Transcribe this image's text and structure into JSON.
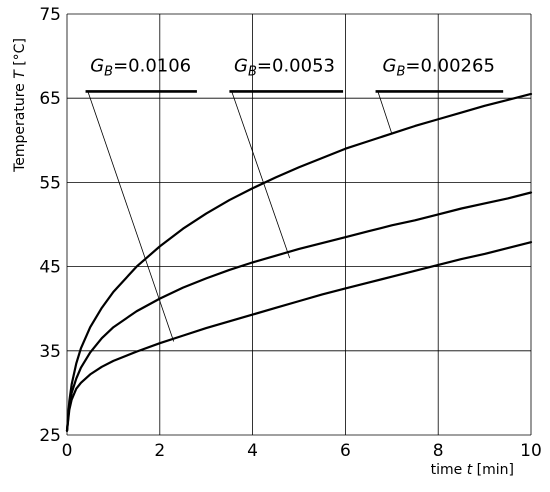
{
  "chart_data": {
    "type": "line",
    "title": "",
    "xlabel": {
      "prefix": "time ",
      "symbol": "t",
      "unit": " [min]"
    },
    "ylabel": {
      "prefix": "Temperature ",
      "symbol": "T",
      "unit": " [°C]"
    },
    "xlim": [
      0,
      10
    ],
    "ylim": [
      25,
      75
    ],
    "x_ticks": [
      0,
      2,
      4,
      6,
      8,
      10
    ],
    "x_tick_labels": [
      "0",
      "2",
      "4",
      "6",
      "8",
      "10"
    ],
    "x_grid": [
      0,
      2,
      4,
      6,
      8,
      10
    ],
    "y_ticks": [
      25,
      35,
      45,
      55,
      65,
      75
    ],
    "y_tick_labels": [
      "25",
      "35",
      "45",
      "55",
      "65",
      "75"
    ],
    "y_grid": [
      25,
      35,
      45,
      55,
      65,
      75
    ],
    "grid": true,
    "series": [
      {
        "symbol": "G",
        "subscript": "B",
        "value_text": "=0.0106",
        "x": [
          0,
          0.05,
          0.1,
          0.2,
          0.3,
          0.5,
          0.75,
          1,
          1.5,
          2,
          2.5,
          3,
          3.5,
          4,
          4.5,
          5,
          5.5,
          6,
          6.5,
          7,
          7.5,
          8,
          8.5,
          9,
          9.5,
          10
        ],
        "y": [
          25.5,
          29,
          31,
          33.5,
          35.3,
          37.8,
          40.1,
          42,
          45,
          47.4,
          49.5,
          51.3,
          52.9,
          54.3,
          55.6,
          56.8,
          57.9,
          59,
          59.9,
          60.8,
          61.7,
          62.5,
          63.3,
          64.1,
          64.8,
          65.5
        ]
      },
      {
        "symbol": "G",
        "subscript": "B",
        "value_text": "=0.0053",
        "x": [
          0,
          0.05,
          0.1,
          0.2,
          0.3,
          0.5,
          0.75,
          1,
          1.5,
          2,
          2.5,
          3,
          3.5,
          4,
          4.5,
          5,
          5.5,
          6,
          6.5,
          7,
          7.5,
          8,
          8.5,
          9,
          9.5,
          10
        ],
        "y": [
          25.5,
          28.5,
          30,
          31.7,
          33,
          34.8,
          36.5,
          37.8,
          39.7,
          41.2,
          42.5,
          43.6,
          44.6,
          45.5,
          46.3,
          47.1,
          47.8,
          48.5,
          49.2,
          49.9,
          50.5,
          51.2,
          51.9,
          52.5,
          53.1,
          53.8
        ]
      },
      {
        "symbol": "G",
        "subscript": "B",
        "value_text": "=0.00265",
        "x": [
          0,
          0.05,
          0.1,
          0.2,
          0.3,
          0.5,
          0.75,
          1,
          1.5,
          2,
          2.5,
          3,
          3.5,
          4,
          4.5,
          5,
          5.5,
          6,
          6.5,
          7,
          7.5,
          8,
          8.5,
          9,
          9.5,
          10
        ],
        "y": [
          25.5,
          28,
          29.2,
          30.5,
          31.2,
          32.2,
          33.1,
          33.8,
          34.9,
          35.9,
          36.8,
          37.7,
          38.5,
          39.3,
          40.1,
          40.9,
          41.7,
          42.4,
          43.1,
          43.8,
          44.5,
          45.2,
          45.9,
          46.5,
          47.2,
          47.9
        ]
      }
    ],
    "legend": {
      "placement": "top",
      "entries": [
        {
          "label_x": 0.5,
          "label_y": 68.2,
          "underline_x": [
            0.4,
            2.8
          ],
          "underline_y": 65.8,
          "leader_start": [
            0.45,
            65.8
          ],
          "leader_end": [
            2.3,
            36.1
          ]
        },
        {
          "label_x": 3.6,
          "label_y": 68.2,
          "underline_x": [
            3.5,
            5.95
          ],
          "underline_y": 65.8,
          "leader_start": [
            3.55,
            65.8
          ],
          "leader_end": [
            4.8,
            46.0
          ]
        },
        {
          "label_x": 6.8,
          "label_y": 68.2,
          "underline_x": [
            6.65,
            9.4
          ],
          "underline_y": 65.8,
          "leader_start": [
            6.7,
            65.8
          ],
          "leader_end": [
            7.0,
            60.8
          ]
        }
      ]
    }
  }
}
